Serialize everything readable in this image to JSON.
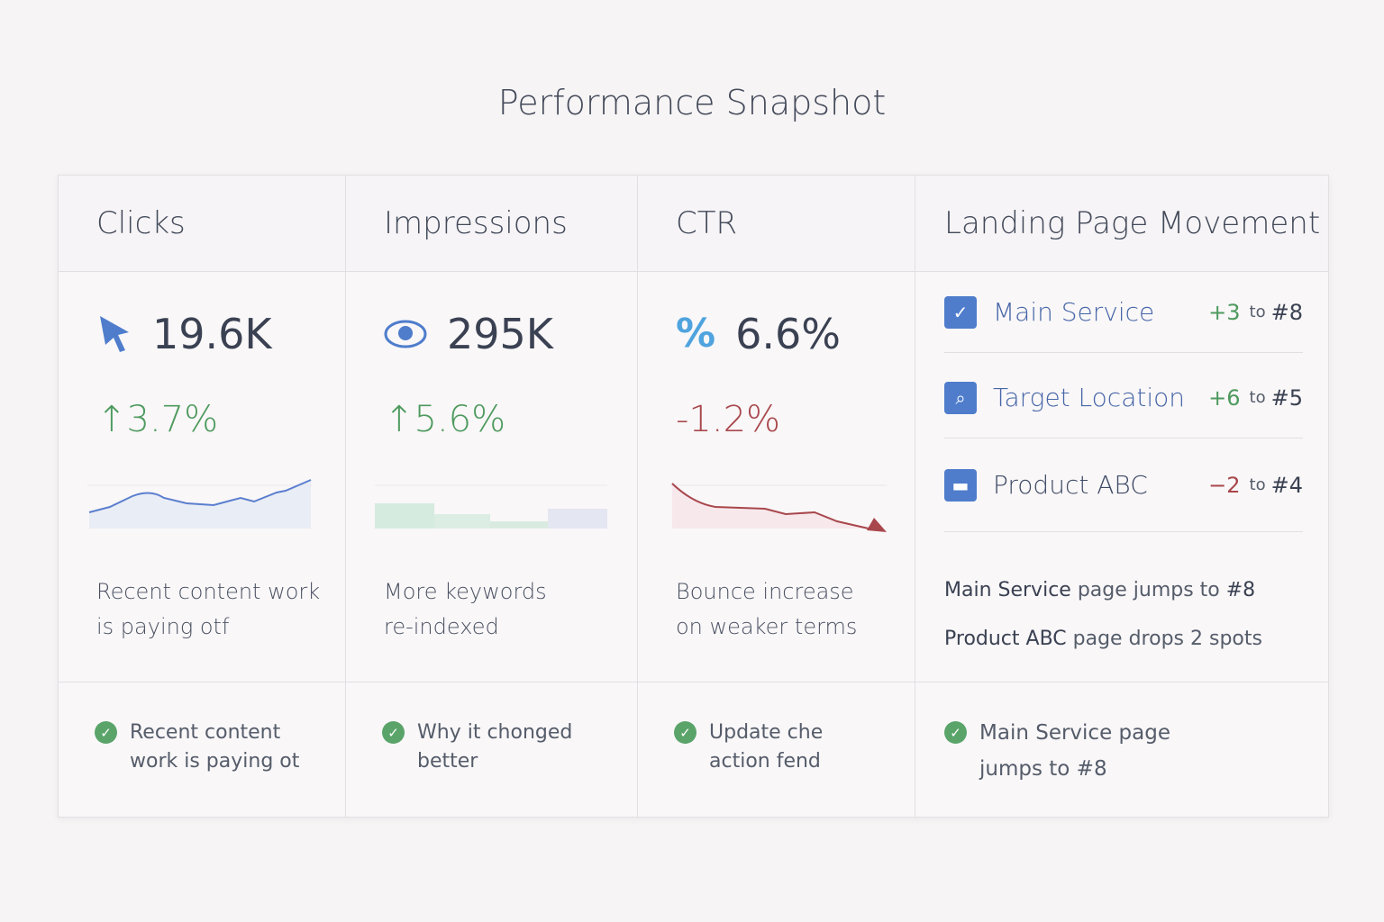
{
  "title": "Performance Snapshot",
  "columns": [
    {
      "header": "Clicks",
      "value": "19.6K",
      "icon": "cursor-icon",
      "delta": "↑3.7%",
      "note1": "Recent content work",
      "note2": "is paying otf",
      "footer1": "Recent content",
      "footer2": "work is paying ot"
    },
    {
      "header": "Impressions",
      "value": "295K",
      "icon": "eye-icon",
      "delta": "↑5.6%",
      "note1": "More keywords",
      "note2": "re-indexed",
      "footer1": "Why it chonged",
      "footer2": "better"
    },
    {
      "header": "CTR",
      "value": "6.6%",
      "icon": "percent-icon",
      "icon_text": "%",
      "delta": "-1.2%",
      "note1": "Bounce increase",
      "note2": "on weaker terms",
      "footer1": "Update che",
      "footer2": "action fend"
    }
  ],
  "landing": {
    "header": "Landing Page Movement",
    "rows": [
      {
        "name": "Main Service",
        "change": "+3",
        "to": "to",
        "rank": "#8",
        "icon": "checklist-icon"
      },
      {
        "name": "Target Location",
        "change": "+6",
        "to": "to",
        "rank": "#5",
        "icon": "search-document-icon"
      },
      {
        "name": "Product ABC",
        "change": "−2",
        "to": "to",
        "rank": "#4",
        "icon": "briefcase-icon"
      }
    ],
    "summary": [
      {
        "bold": "Main Service",
        "rest": " page jumps to ",
        "bold2": "#8"
      },
      {
        "bold": "Product ABC",
        "rest": " page drops 2 spots",
        "bold2": ""
      }
    ],
    "footer1": "Main Service page",
    "footer2": "jumps to #8"
  },
  "colors": {
    "up": "#4e9a5e",
    "down": "#a8474c",
    "accent": "#4f7dcc"
  }
}
